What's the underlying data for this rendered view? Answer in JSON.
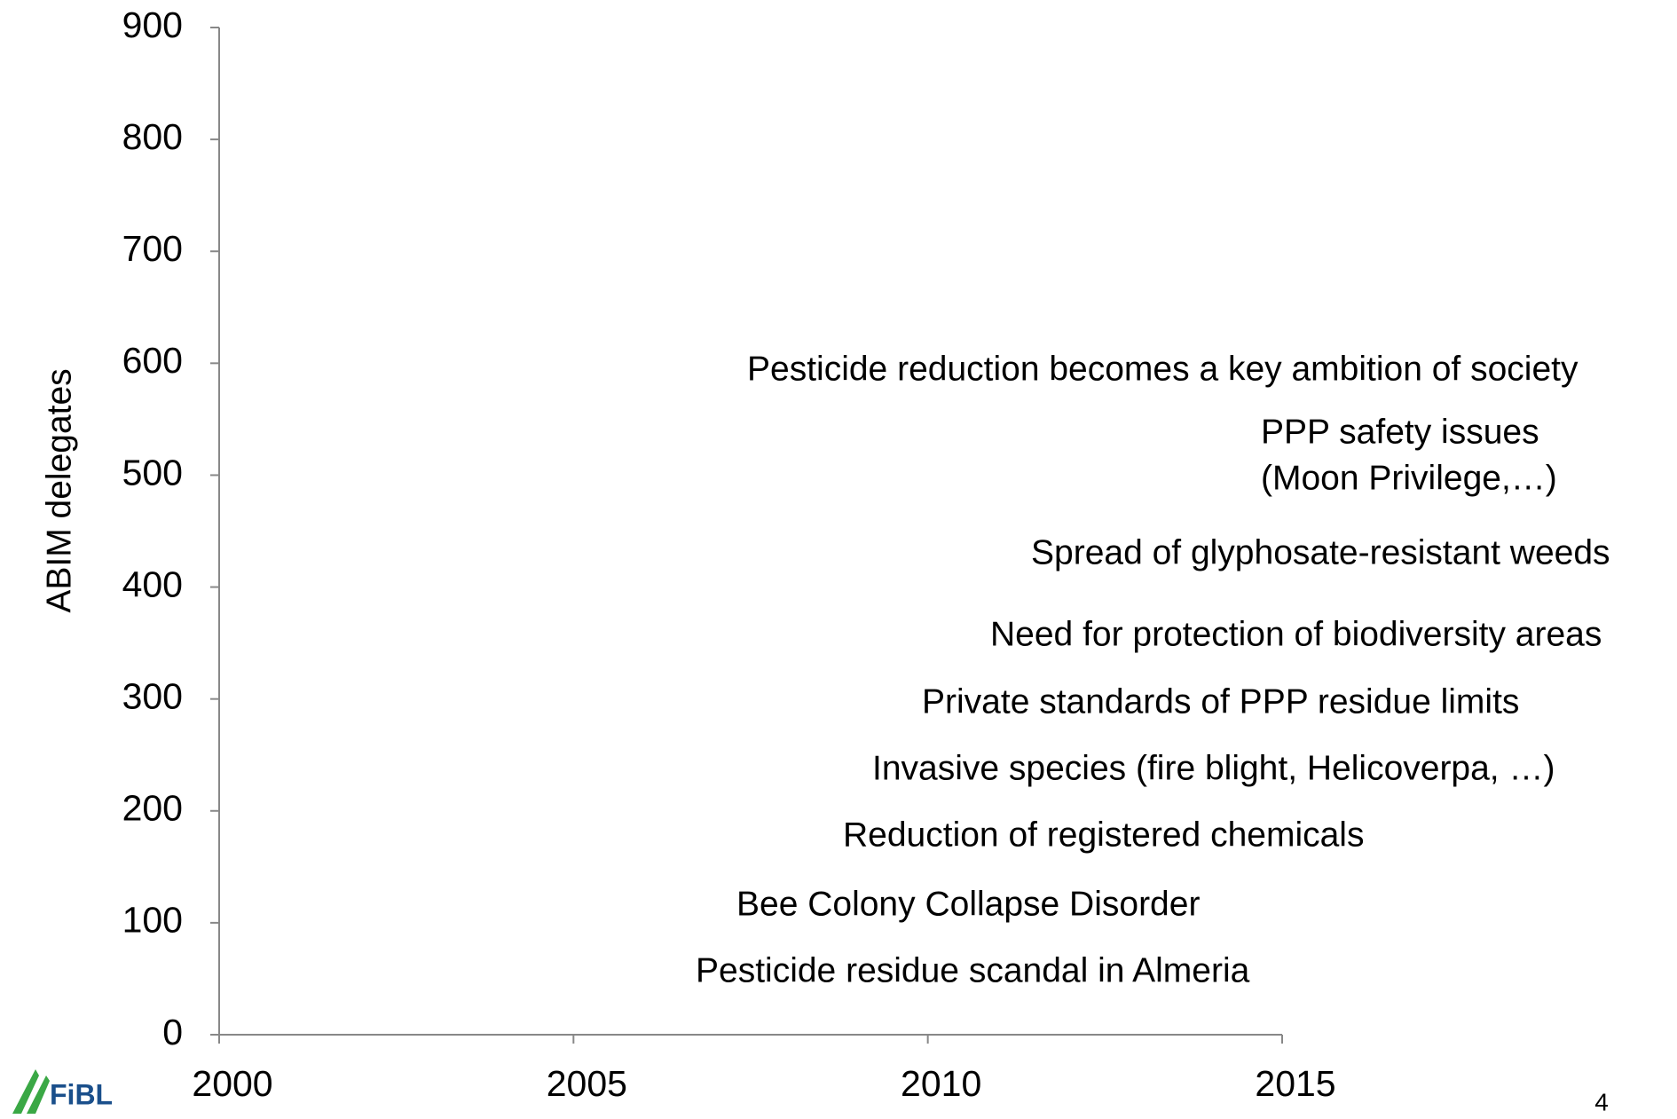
{
  "chart_data": {
    "type": "line",
    "ylabel": "ABIM delegates",
    "xlim": [
      2000,
      2015
    ],
    "xticks": [
      2000,
      2005,
      2010,
      2015
    ],
    "ylim": [
      0,
      900
    ],
    "yticks": [
      0,
      100,
      200,
      300,
      400,
      500,
      600,
      700,
      800,
      900
    ],
    "series": [],
    "annotations": [
      "Pesticide reduction becomes a key ambition of society",
      "PPP safety issues",
      "(Moon Privilege,…)",
      "Spread of glyphosate-resistant weeds",
      "Need for protection of biodiversity areas",
      "Private standards of PPP residue limits",
      "Invasive species (fire blight, Helicoverpa, …)",
      "Reduction of registered chemicals",
      "Bee Colony Collapse Disorder",
      "Pesticide residue scandal in Almeria"
    ]
  },
  "logo": "FiBL",
  "page_number": 4
}
